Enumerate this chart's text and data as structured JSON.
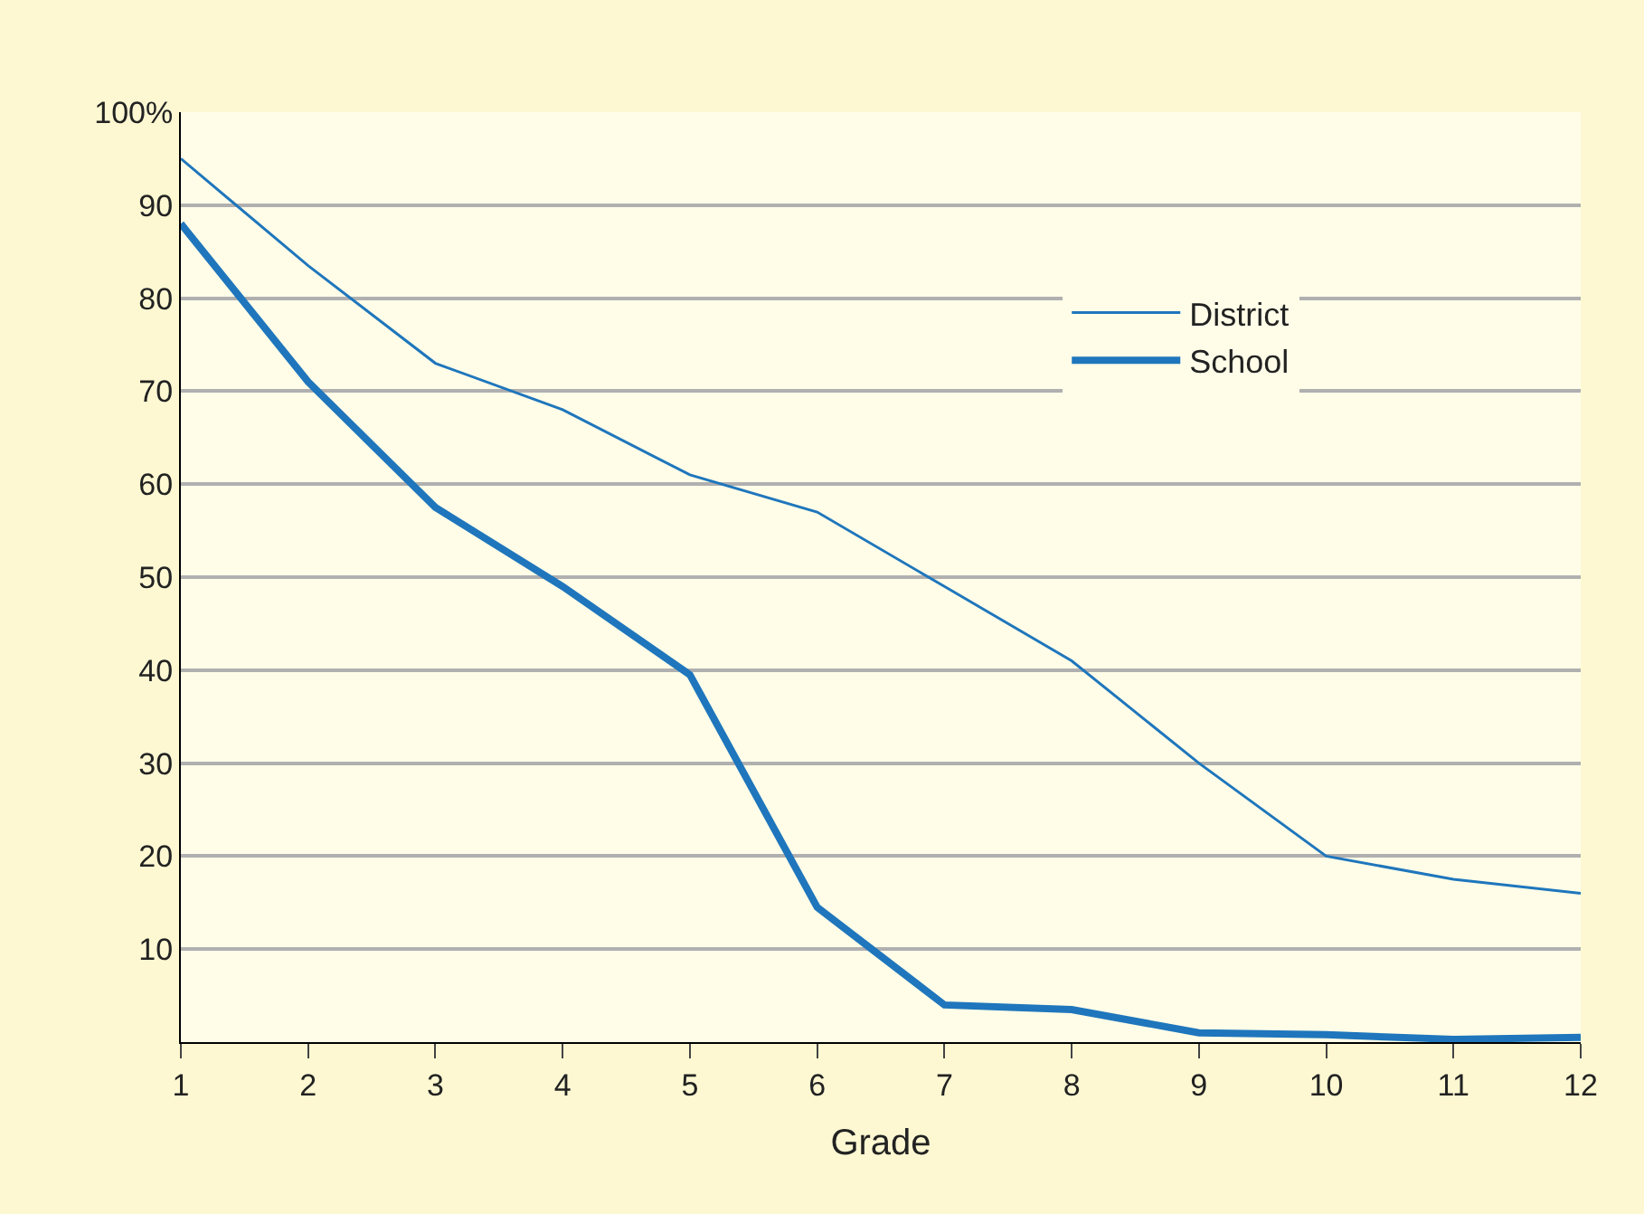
{
  "chart_data": {
    "type": "line",
    "xlabel": "Grade",
    "x": [
      1,
      2,
      3,
      4,
      5,
      6,
      7,
      8,
      9,
      10,
      11,
      12
    ],
    "series": [
      {
        "name": "District",
        "color": "#1f76bc",
        "values": [
          95,
          83.5,
          73,
          68,
          61,
          57,
          49,
          41,
          30,
          20,
          17.5,
          16
        ]
      },
      {
        "name": "School",
        "color": "#1f76bc",
        "values": [
          88,
          71,
          57.5,
          49,
          39.5,
          14.5,
          4,
          3.5,
          1,
          0.8,
          0.3,
          0.5
        ]
      }
    ],
    "xlim": [
      1,
      12
    ],
    "xticks": [
      1,
      2,
      3,
      4,
      5,
      6,
      7,
      8,
      9,
      10,
      11,
      12
    ],
    "ylim": [
      0,
      100
    ],
    "yticks": [
      10,
      20,
      30,
      40,
      50,
      60,
      70,
      80,
      90,
      {
        "value": 100,
        "label": "100%"
      }
    ],
    "grid": "y",
    "legend": "top right",
    "marker": "none",
    "line_style": "solid"
  }
}
